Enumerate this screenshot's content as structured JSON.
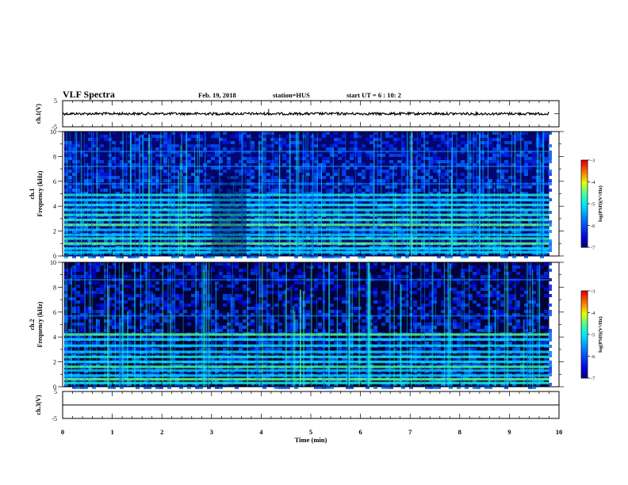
{
  "header": {
    "title": "VLF Spectra",
    "date": "Feb. 19, 2018",
    "station": "station=HUS",
    "start": "start UT =  6 : 10: 2"
  },
  "chart_data": [
    {
      "type": "line",
      "panel": "ch1-waveform",
      "ylabel": "ch.1(V)",
      "ylim": [
        -5,
        5
      ],
      "yticks": [
        "5",
        "-5"
      ],
      "x": [
        0,
        1,
        2,
        3,
        4,
        5,
        6,
        7,
        8,
        9,
        9.8
      ],
      "series": [
        {
          "values": [
            0,
            0,
            0,
            0,
            0,
            0,
            0,
            0,
            0,
            0,
            0
          ]
        }
      ]
    },
    {
      "type": "heatmap",
      "panel": "ch1-spectrogram",
      "ylabel": "ch.1\nFrequency (kHz)",
      "xlim": [
        0,
        10
      ],
      "ylim": [
        0,
        10
      ],
      "yticks": [
        "0",
        "2",
        "4",
        "6",
        "8",
        "10"
      ],
      "data_xmax": 9.8,
      "bands_khz": [
        0.3,
        0.6,
        1.0,
        1.4,
        1.7,
        2.1,
        2.5,
        2.9,
        3.3,
        3.7,
        4.1,
        4.5,
        4.9,
        5.8,
        7.2,
        8.4
      ],
      "colorbar": {
        "label": "log(PSD)(V²/Hz)",
        "range": [
          -7,
          -3
        ],
        "ticks": [
          "-3",
          "-4",
          "-5",
          "-6",
          "-7"
        ]
      }
    },
    {
      "type": "heatmap",
      "panel": "ch2-spectrogram",
      "ylabel": "ch.2\nFrequency (kHz)",
      "xlim": [
        0,
        10
      ],
      "ylim": [
        0,
        10
      ],
      "yticks": [
        "0",
        "2",
        "4",
        "6",
        "8",
        "10"
      ],
      "data_xmax": 9.8,
      "bands_khz": [
        0.3,
        0.6,
        0.9,
        1.3,
        1.6,
        2.0,
        2.4,
        2.8,
        3.3,
        3.8,
        4.2,
        5.7,
        8.6
      ],
      "colorbar": {
        "label": "log(PSD)(V²/Hz)",
        "range": [
          -7,
          -3
        ],
        "ticks": [
          "-3",
          "-4",
          "-5",
          "-6",
          "-7"
        ]
      }
    },
    {
      "type": "line",
      "panel": "ch3-waveform",
      "ylabel": "ch.3(V)",
      "xlabel": "Time (min)",
      "ylim": [
        -5,
        5
      ],
      "yticks": [
        "5",
        "-5"
      ],
      "xlim": [
        0,
        10
      ],
      "xticks": [
        "0",
        "1",
        "2",
        "3",
        "4",
        "5",
        "6",
        "7",
        "8",
        "9",
        "10"
      ],
      "x": [
        0,
        10
      ],
      "series": [
        {
          "values": [
            0,
            0
          ]
        }
      ]
    }
  ]
}
